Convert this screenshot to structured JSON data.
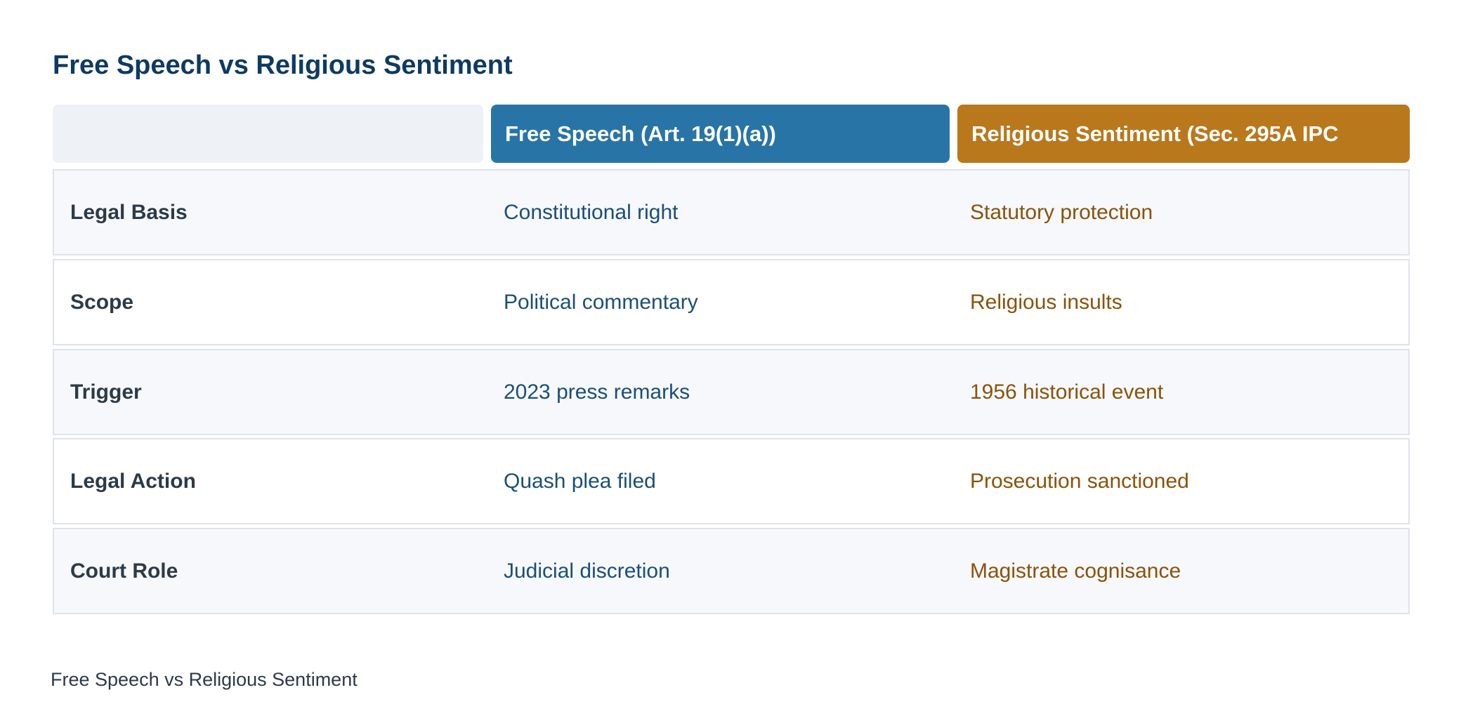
{
  "header": {
    "title": "Free Speech vs Religious Sentiment"
  },
  "table": {
    "columns": [
      "Free Speech (Art. 19(1)(a))",
      "Religious Sentiment (Sec. 295A IPC"
    ],
    "rows": [
      [
        "Legal Basis",
        "Constitutional right",
        "Statutory protection"
      ],
      [
        "Scope",
        "Political commentary",
        "Religious insults"
      ],
      [
        "Trigger",
        "2023 press remarks",
        "1956 historical event"
      ],
      [
        "Legal Action",
        "Quash plea filed",
        "Prosecution sanctioned"
      ],
      [
        "Court Role",
        "Judicial discretion",
        "Magistrate cognisance"
      ]
    ]
  },
  "footer": {
    "caption": "Free Speech vs Religious Sentiment"
  }
}
